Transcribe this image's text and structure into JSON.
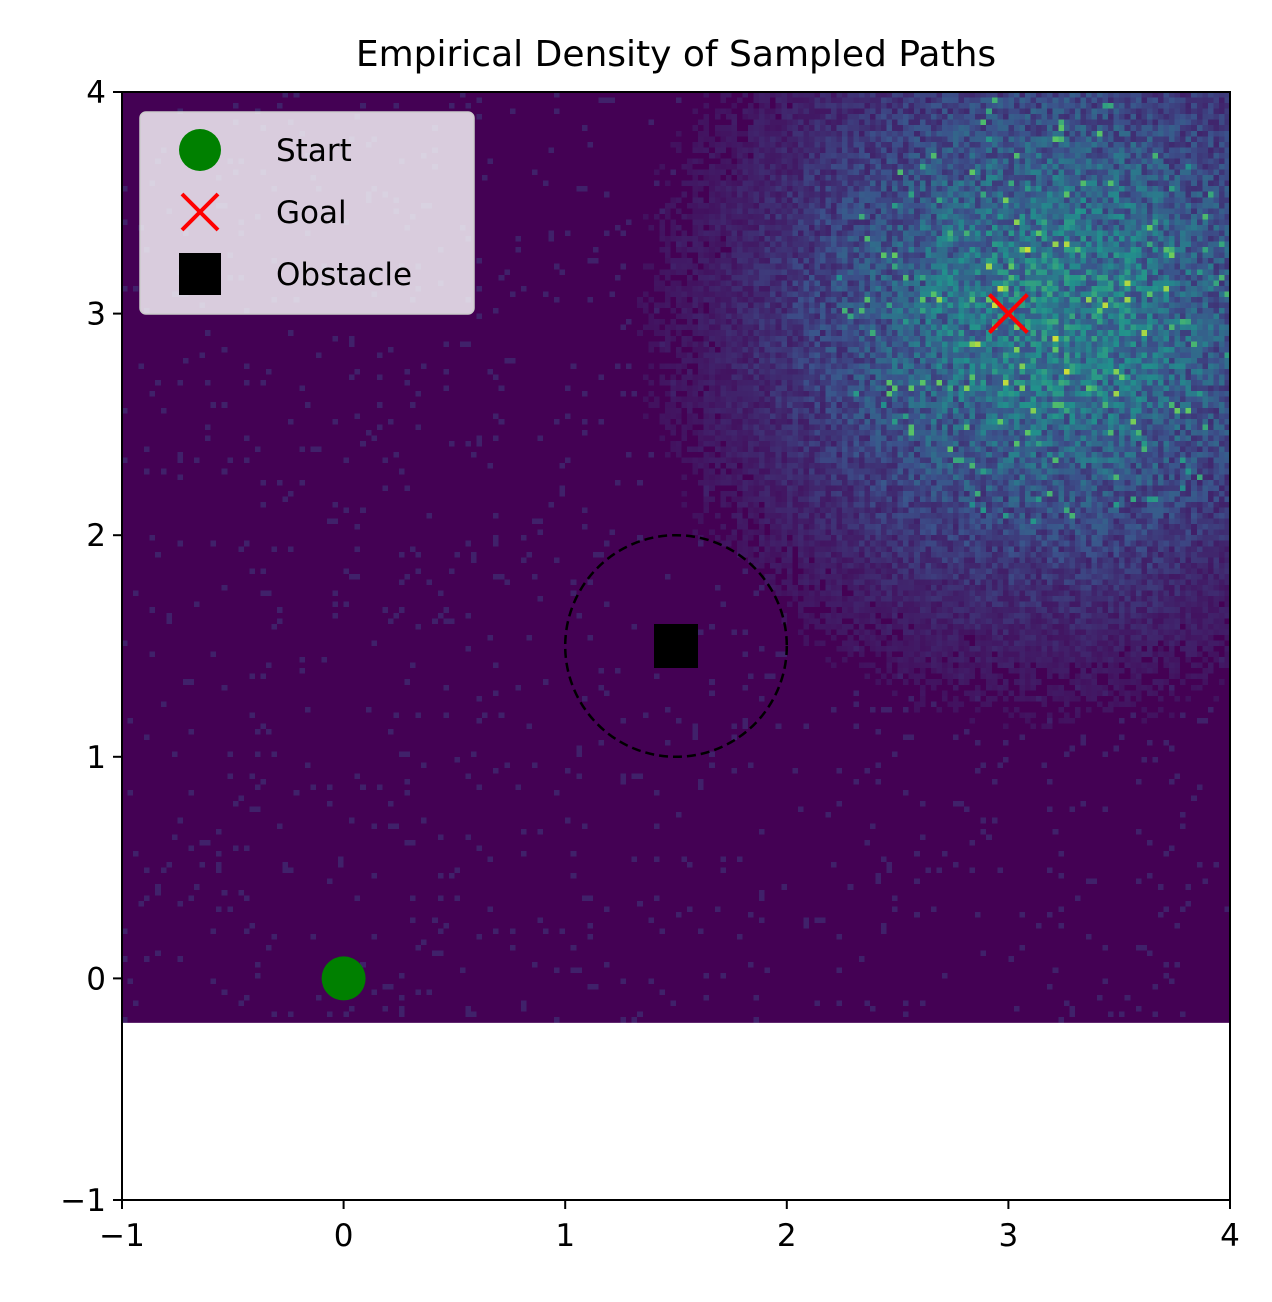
{
  "chart_data": {
    "type": "heatmap",
    "title": "Empirical Density of Sampled Paths",
    "xlabel": "",
    "ylabel": "",
    "xlim": [
      -1,
      4
    ],
    "ylim": [
      -1,
      4
    ],
    "xticks": [
      -1,
      0,
      1,
      2,
      3,
      4
    ],
    "yticks": [
      -1,
      0,
      1,
      2,
      3,
      4
    ],
    "xtick_labels": [
      "−1",
      "0",
      "1",
      "2",
      "3",
      "4"
    ],
    "ytick_labels": [
      "−1",
      "0",
      "1",
      "2",
      "3",
      "4"
    ],
    "grid": false,
    "colormap": "viridis",
    "heatmap": {
      "x_range": [
        -1,
        4
      ],
      "y_range": [
        -0.2,
        4
      ],
      "bins_x": 200,
      "bins_y": 168,
      "density_center": [
        3.2,
        3.0
      ],
      "density_spread": 0.85,
      "background_color": "#440154"
    },
    "markers": [
      {
        "name": "Start",
        "shape": "circle",
        "x": 0,
        "y": 0,
        "color": "#008000"
      },
      {
        "name": "Goal",
        "shape": "x",
        "x": 3,
        "y": 3,
        "color": "#ff0000"
      },
      {
        "name": "Obstacle",
        "shape": "square",
        "x": 1.5,
        "y": 1.5,
        "color": "#000000"
      }
    ],
    "obstacle_radius": {
      "center": [
        1.5,
        1.5
      ],
      "radius": 0.5,
      "style": "dashed",
      "color": "#000000"
    },
    "legend": {
      "position": "top-left",
      "entries": [
        {
          "label": "Start",
          "shape": "circle",
          "color": "#008000"
        },
        {
          "label": "Goal",
          "shape": "x",
          "color": "#ff0000"
        },
        {
          "label": "Obstacle",
          "shape": "square",
          "color": "#000000"
        }
      ]
    }
  }
}
